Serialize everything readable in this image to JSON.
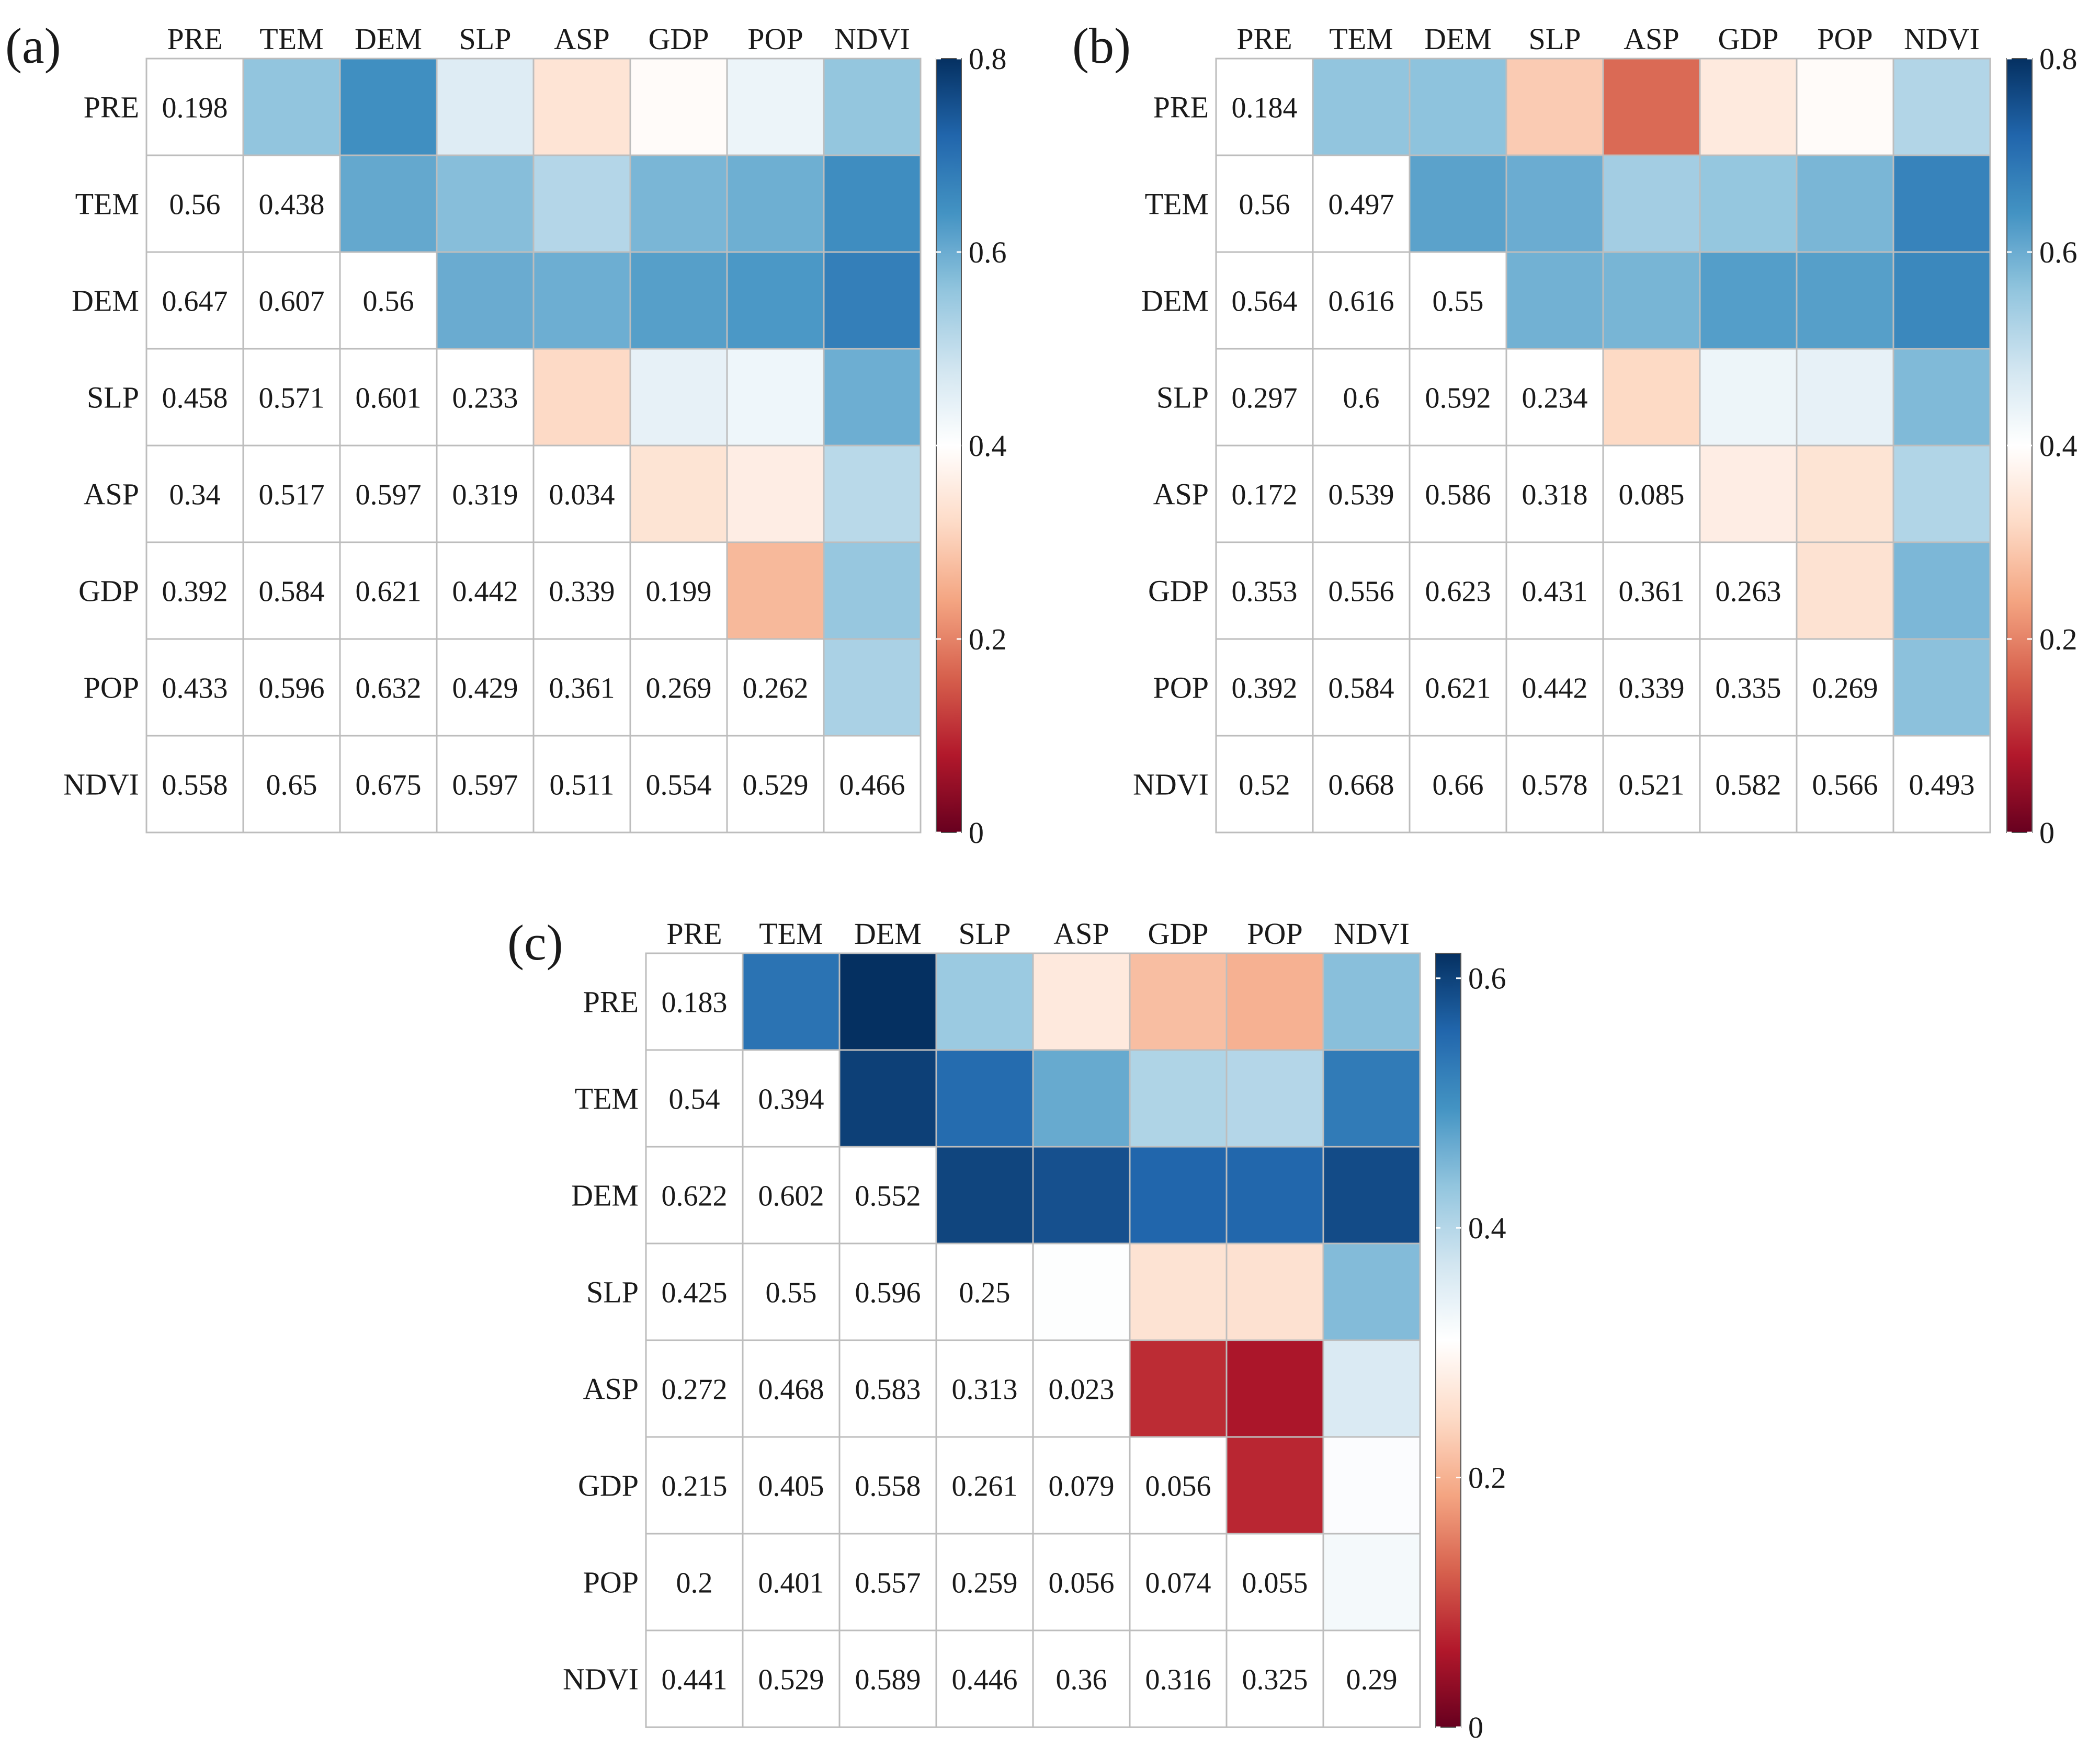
{
  "chart_data": [
    {
      "type": "heatmap",
      "panel_label": "(a)",
      "variables": [
        "PRE",
        "TEM",
        "DEM",
        "SLP",
        "ASP",
        "GDP",
        "POP",
        "NDVI"
      ],
      "matrix": [
        [
          0.198,
          0.56,
          0.647,
          0.458,
          0.34,
          0.392,
          0.433,
          0.558
        ],
        [
          0.56,
          0.438,
          0.607,
          0.571,
          0.517,
          0.584,
          0.596,
          0.65
        ],
        [
          0.647,
          0.607,
          0.56,
          0.601,
          0.597,
          0.621,
          0.632,
          0.675
        ],
        [
          0.458,
          0.571,
          0.601,
          0.233,
          0.319,
          0.442,
          0.429,
          0.597
        ],
        [
          0.34,
          0.517,
          0.597,
          0.319,
          0.034,
          0.339,
          0.361,
          0.511
        ],
        [
          0.392,
          0.584,
          0.621,
          0.442,
          0.339,
          0.199,
          0.269,
          0.554
        ],
        [
          0.433,
          0.596,
          0.632,
          0.429,
          0.361,
          0.269,
          0.262,
          0.529
        ],
        [
          0.558,
          0.65,
          0.675,
          0.597,
          0.511,
          0.554,
          0.529,
          0.466
        ]
      ],
      "value_labels": [
        [
          "0.198"
        ],
        [
          "0.56",
          "0.438"
        ],
        [
          "0.647",
          "0.607",
          "0.56"
        ],
        [
          "0.458",
          "0.571",
          "0.601",
          "0.233"
        ],
        [
          "0.34",
          "0.517",
          "0.597",
          "0.319",
          "0.034"
        ],
        [
          "0.392",
          "0.584",
          "0.621",
          "0.442",
          "0.339",
          "0.199"
        ],
        [
          "0.433",
          "0.596",
          "0.632",
          "0.429",
          "0.361",
          "0.269",
          "0.262"
        ],
        [
          "0.558",
          "0.65",
          "0.675",
          "0.597",
          "0.511",
          "0.554",
          "0.529",
          "0.466"
        ]
      ],
      "lower_triangle": "numbers",
      "upper_triangle": "colored cells",
      "colorbar": {
        "range": [
          0,
          0.8
        ],
        "ticks": [
          0,
          0.2,
          0.4,
          0.6,
          0.8
        ],
        "tick_labels": [
          "0",
          "0.2",
          "0.4",
          "0.6",
          "0.8"
        ],
        "midpoint": 0.4
      }
    },
    {
      "type": "heatmap",
      "panel_label": "(b)",
      "variables": [
        "PRE",
        "TEM",
        "DEM",
        "SLP",
        "ASP",
        "GDP",
        "POP",
        "NDVI"
      ],
      "matrix": [
        [
          0.184,
          0.56,
          0.564,
          0.297,
          0.172,
          0.353,
          0.392,
          0.52
        ],
        [
          0.56,
          0.497,
          0.616,
          0.6,
          0.539,
          0.556,
          0.584,
          0.668
        ],
        [
          0.564,
          0.616,
          0.55,
          0.592,
          0.586,
          0.623,
          0.621,
          0.66
        ],
        [
          0.297,
          0.6,
          0.592,
          0.234,
          0.318,
          0.431,
          0.442,
          0.578
        ],
        [
          0.172,
          0.539,
          0.586,
          0.318,
          0.085,
          0.361,
          0.339,
          0.521
        ],
        [
          0.353,
          0.556,
          0.623,
          0.431,
          0.361,
          0.263,
          0.335,
          0.582
        ],
        [
          0.392,
          0.584,
          0.621,
          0.442,
          0.339,
          0.335,
          0.269,
          0.566
        ],
        [
          0.52,
          0.668,
          0.66,
          0.578,
          0.521,
          0.582,
          0.566,
          0.493
        ]
      ],
      "value_labels": [
        [
          "0.184"
        ],
        [
          "0.56",
          "0.497"
        ],
        [
          "0.564",
          "0.616",
          "0.55"
        ],
        [
          "0.297",
          "0.6",
          "0.592",
          "0.234"
        ],
        [
          "0.172",
          "0.539",
          "0.586",
          "0.318",
          "0.085"
        ],
        [
          "0.353",
          "0.556",
          "0.623",
          "0.431",
          "0.361",
          "0.263"
        ],
        [
          "0.392",
          "0.584",
          "0.621",
          "0.442",
          "0.339",
          "0.335",
          "0.269"
        ],
        [
          "0.52",
          "0.668",
          "0.66",
          "0.578",
          "0.521",
          "0.582",
          "0.566",
          "0.493"
        ]
      ],
      "lower_triangle": "numbers",
      "upper_triangle": "colored cells",
      "colorbar": {
        "range": [
          0,
          0.8
        ],
        "ticks": [
          0,
          0.2,
          0.4,
          0.6,
          0.8
        ],
        "tick_labels": [
          "0",
          "0.2",
          "0.4",
          "0.6",
          "0.8"
        ],
        "midpoint": 0.4
      }
    },
    {
      "type": "heatmap",
      "panel_label": "(c)",
      "variables": [
        "PRE",
        "TEM",
        "DEM",
        "SLP",
        "ASP",
        "GDP",
        "POP",
        "NDVI"
      ],
      "matrix": [
        [
          0.183,
          0.54,
          0.622,
          0.425,
          0.272,
          0.215,
          0.2,
          0.441
        ],
        [
          0.54,
          0.394,
          0.602,
          0.55,
          0.468,
          0.405,
          0.401,
          0.529
        ],
        [
          0.622,
          0.602,
          0.552,
          0.596,
          0.583,
          0.558,
          0.557,
          0.589
        ],
        [
          0.425,
          0.55,
          0.596,
          0.25,
          0.313,
          0.261,
          0.259,
          0.446
        ],
        [
          0.272,
          0.468,
          0.583,
          0.313,
          0.023,
          0.079,
          0.056,
          0.36
        ],
        [
          0.215,
          0.405,
          0.558,
          0.261,
          0.079,
          0.056,
          0.074,
          0.316
        ],
        [
          0.2,
          0.401,
          0.557,
          0.259,
          0.056,
          0.074,
          0.055,
          0.325
        ],
        [
          0.441,
          0.529,
          0.589,
          0.446,
          0.36,
          0.316,
          0.325,
          0.29
        ]
      ],
      "value_labels": [
        [
          "0.183"
        ],
        [
          "0.54",
          "0.394"
        ],
        [
          "0.622",
          "0.602",
          "0.552"
        ],
        [
          "0.425",
          "0.55",
          "0.596",
          "0.25"
        ],
        [
          "0.272",
          "0.468",
          "0.583",
          "0.313",
          "0.023"
        ],
        [
          "0.215",
          "0.405",
          "0.558",
          "0.261",
          "0.079",
          "0.056"
        ],
        [
          "0.2",
          "0.401",
          "0.557",
          "0.259",
          "0.056",
          "0.074",
          "0.055"
        ],
        [
          "0.441",
          "0.529",
          "0.589",
          "0.446",
          "0.36",
          "0.316",
          "0.325",
          "0.29"
        ]
      ],
      "lower_triangle": "numbers",
      "upper_triangle": "colored cells",
      "colorbar": {
        "range": [
          0,
          0.62
        ],
        "ticks": [
          0,
          0.2,
          0.4,
          0.6
        ],
        "tick_labels": [
          "0",
          "0.2",
          "0.4",
          "0.6"
        ],
        "midpoint": 0.31
      }
    }
  ],
  "colors": {
    "scale": [
      "#67001f",
      "#b2182b",
      "#d6604d",
      "#f4a582",
      "#fddbc7",
      "#ffffff",
      "#d1e5f0",
      "#92c5de",
      "#4393c3",
      "#2166ac",
      "#053061"
    ],
    "grid": "#bdbdbd",
    "text": "#1a1a1a"
  }
}
